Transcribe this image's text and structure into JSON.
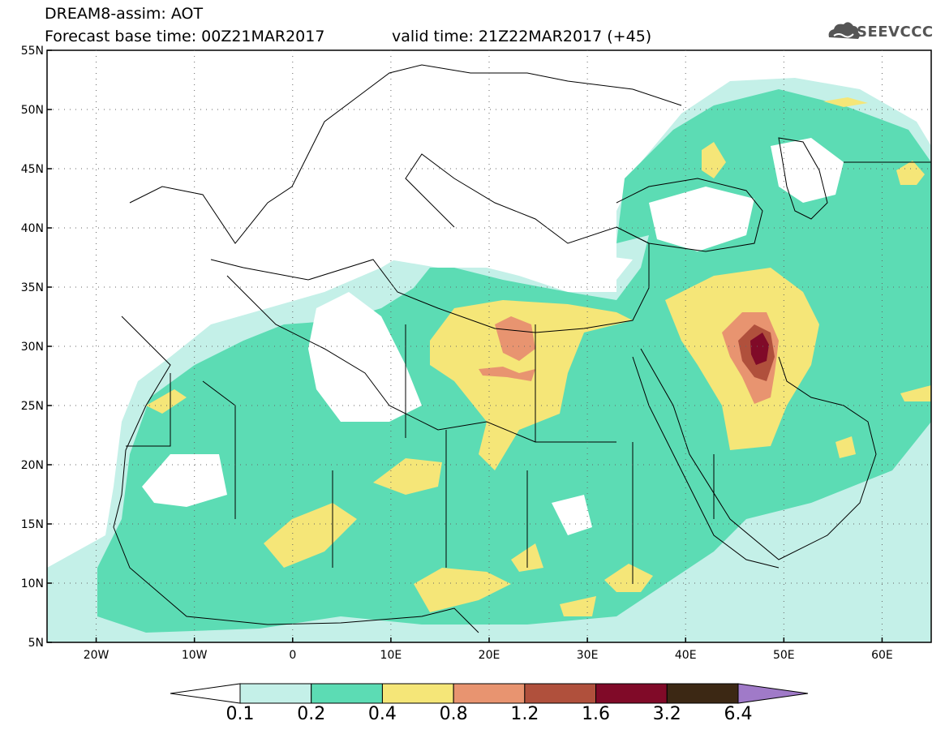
{
  "header": {
    "title_line1": "DREAM8-assim: AOT",
    "title_line2": "Forecast base time: 00Z21MAR2017",
    "valid_time": "valid time: 21Z22MAR2017 (+45)",
    "logo_text": "SEEVCCC"
  },
  "axes": {
    "lat_labels": [
      "55N",
      "50N",
      "45N",
      "40N",
      "35N",
      "30N",
      "25N",
      "20N",
      "15N",
      "10N",
      "5N"
    ],
    "lon_labels": [
      "20W",
      "10W",
      "0",
      "10E",
      "20E",
      "30E",
      "40E",
      "50E",
      "60E"
    ]
  },
  "colorbar": {
    "labels": [
      "0.1",
      "0.2",
      "0.4",
      "0.8",
      "1.2",
      "1.6",
      "3.2",
      "6.4"
    ],
    "colors": [
      "#c4f0e8",
      "#5cdcb4",
      "#f5e678",
      "#e89470",
      "#b0503c",
      "#800a28",
      "#3c2814",
      "#a07ac8"
    ]
  }
}
